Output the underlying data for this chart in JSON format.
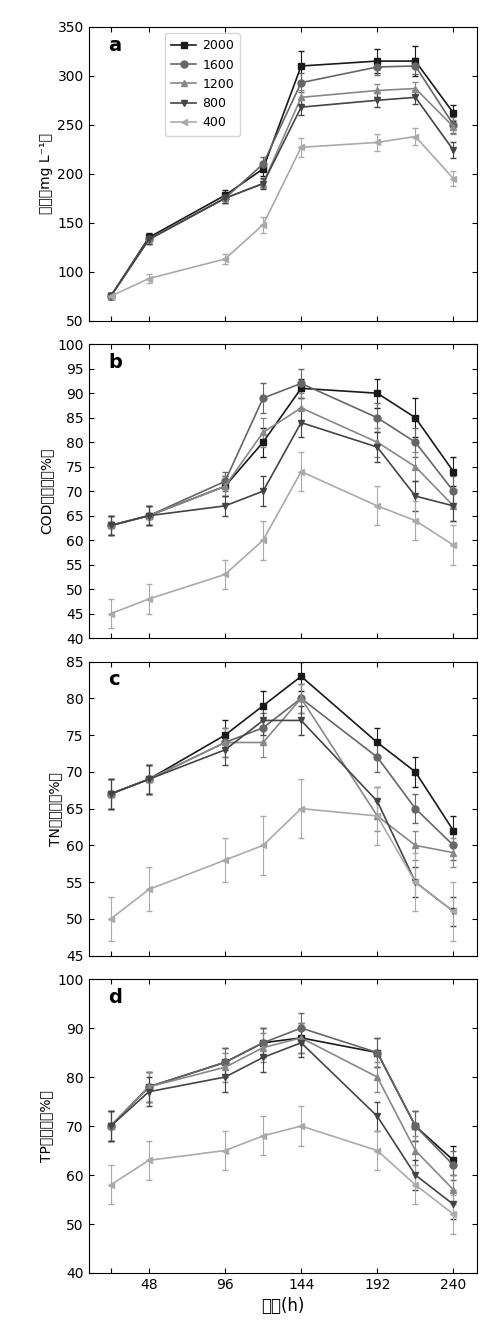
{
  "x": [
    24,
    48,
    96,
    120,
    144,
    192,
    216,
    240
  ],
  "panel_a": {
    "label": "a",
    "ylabel": "干重（mg L⁻¹）",
    "ylim": [
      50,
      350
    ],
    "yticks": [
      50,
      100,
      150,
      200,
      250,
      300,
      350
    ],
    "series": {
      "2000": {
        "y": [
          75,
          135,
          178,
          205,
          310,
          315,
          315,
          262
        ],
        "yerr": [
          3,
          5,
          5,
          7,
          15,
          12,
          15,
          8
        ]
      },
      "1600": {
        "y": [
          75,
          133,
          175,
          210,
          293,
          309,
          310,
          250
        ],
        "yerr": [
          3,
          5,
          5,
          7,
          10,
          8,
          8,
          8
        ]
      },
      "1200": {
        "y": [
          75,
          133,
          175,
          190,
          278,
          285,
          287,
          248
        ],
        "yerr": [
          3,
          5,
          5,
          5,
          8,
          7,
          7,
          7
        ]
      },
      "800": {
        "y": [
          75,
          133,
          175,
          190,
          268,
          275,
          278,
          224
        ],
        "yerr": [
          3,
          5,
          5,
          6,
          8,
          7,
          7,
          8
        ]
      },
      "400": {
        "y": [
          75,
          93,
          113,
          148,
          227,
          232,
          238,
          195
        ],
        "yerr": [
          3,
          5,
          5,
          8,
          10,
          9,
          9,
          8
        ]
      }
    }
  },
  "panel_b": {
    "label": "b",
    "ylabel": "COD去除率（%）",
    "ylim": [
      40,
      100
    ],
    "yticks": [
      40,
      45,
      50,
      55,
      60,
      65,
      70,
      75,
      80,
      85,
      90,
      95,
      100
    ],
    "series": {
      "2000": {
        "y": [
          63,
          65,
          71,
          80,
          91,
          90,
          85,
          74
        ],
        "yerr": [
          2,
          2,
          2,
          3,
          2,
          3,
          4,
          3
        ]
      },
      "1600": {
        "y": [
          63,
          65,
          72,
          89,
          92,
          85,
          80,
          70
        ],
        "yerr": [
          2,
          2,
          2,
          3,
          3,
          3,
          3,
          3
        ]
      },
      "1200": {
        "y": [
          63,
          65,
          71,
          82,
          87,
          80,
          75,
          67
        ],
        "yerr": [
          2,
          2,
          2,
          3,
          3,
          3,
          3,
          3
        ]
      },
      "800": {
        "y": [
          63,
          65,
          67,
          70,
          84,
          79,
          69,
          67
        ],
        "yerr": [
          2,
          2,
          2,
          3,
          3,
          3,
          3,
          3
        ]
      },
      "400": {
        "y": [
          45,
          48,
          53,
          60,
          74,
          67,
          64,
          59
        ],
        "yerr": [
          3,
          3,
          3,
          4,
          4,
          4,
          4,
          4
        ]
      }
    }
  },
  "panel_c": {
    "label": "c",
    "ylabel": "TN去除率（%）",
    "ylim": [
      45,
      85
    ],
    "yticks": [
      45,
      50,
      55,
      60,
      65,
      70,
      75,
      80,
      85
    ],
    "series": {
      "2000": {
        "y": [
          67,
          69,
          75,
          79,
          83,
          74,
          70,
          62
        ],
        "yerr": [
          2,
          2,
          2,
          2,
          2,
          2,
          2,
          2
        ]
      },
      "1600": {
        "y": [
          67,
          69,
          74,
          76,
          80,
          72,
          65,
          60
        ],
        "yerr": [
          2,
          2,
          2,
          2,
          2,
          2,
          2,
          2
        ]
      },
      "1200": {
        "y": [
          67,
          69,
          74,
          74,
          80,
          64,
          60,
          59
        ],
        "yerr": [
          2,
          2,
          2,
          2,
          2,
          2,
          2,
          2
        ]
      },
      "800": {
        "y": [
          67,
          69,
          73,
          77,
          77,
          66,
          55,
          51
        ],
        "yerr": [
          2,
          2,
          2,
          2,
          2,
          2,
          2,
          2
        ]
      },
      "400": {
        "y": [
          50,
          54,
          58,
          60,
          65,
          64,
          55,
          51
        ],
        "yerr": [
          3,
          3,
          3,
          4,
          4,
          4,
          4,
          4
        ]
      }
    }
  },
  "panel_d": {
    "label": "d",
    "ylabel": "TP去除率（%）",
    "ylim": [
      40,
      100
    ],
    "yticks": [
      40,
      50,
      60,
      70,
      80,
      90,
      100
    ],
    "series": {
      "2000": {
        "y": [
          70,
          78,
          83,
          87,
          88,
          85,
          70,
          63
        ],
        "yerr": [
          3,
          3,
          3,
          3,
          3,
          3,
          3,
          3
        ]
      },
      "1600": {
        "y": [
          70,
          78,
          83,
          87,
          90,
          85,
          70,
          62
        ],
        "yerr": [
          3,
          3,
          3,
          3,
          3,
          3,
          3,
          3
        ]
      },
      "1200": {
        "y": [
          70,
          78,
          82,
          86,
          88,
          80,
          65,
          57
        ],
        "yerr": [
          3,
          3,
          3,
          3,
          3,
          3,
          3,
          3
        ]
      },
      "800": {
        "y": [
          70,
          77,
          80,
          84,
          87,
          72,
          60,
          54
        ],
        "yerr": [
          3,
          3,
          3,
          3,
          3,
          3,
          3,
          3
        ]
      },
      "400": {
        "y": [
          58,
          63,
          65,
          68,
          70,
          65,
          58,
          52
        ],
        "yerr": [
          4,
          4,
          4,
          4,
          4,
          4,
          4,
          4
        ]
      }
    }
  },
  "series_styles": {
    "2000": {
      "color": "#1a1a1a",
      "marker": "s",
      "linestyle": "-"
    },
    "1600": {
      "color": "#666666",
      "marker": "o",
      "linestyle": "-"
    },
    "1200": {
      "color": "#888888",
      "marker": "^",
      "linestyle": "-"
    },
    "800": {
      "color": "#444444",
      "marker": "v",
      "linestyle": "-"
    },
    "400": {
      "color": "#aaaaaa",
      "marker": "<",
      "linestyle": "-"
    }
  },
  "xlabel": "时间(h)",
  "xticks": [
    24,
    48,
    96,
    144,
    192,
    240
  ],
  "xticklabels": [
    "",
    "48",
    "96",
    "144",
    "192",
    "240"
  ],
  "legend_labels": [
    "2000",
    "1600",
    "1200",
    "800",
    "400"
  ]
}
